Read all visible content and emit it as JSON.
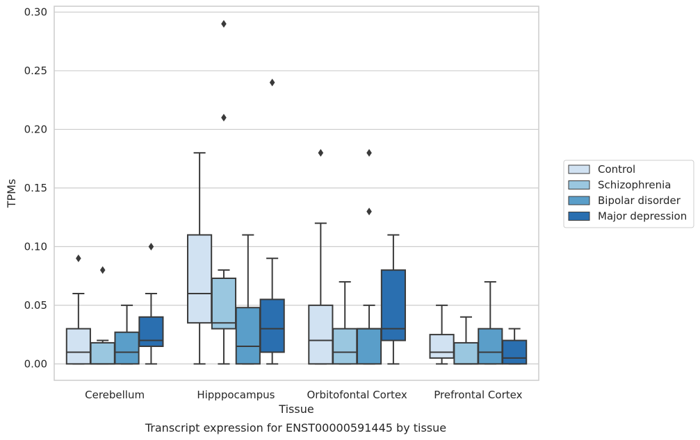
{
  "chart_data": {
    "type": "box",
    "title": "",
    "caption": "Transcript expression for ENST00000591445 by tissue",
    "xlabel": "Tissue",
    "ylabel": "TPMs",
    "ylim": [
      -0.014,
      0.305
    ],
    "yticks": [
      "0.00",
      "0.05",
      "0.10",
      "0.15",
      "0.20",
      "0.25",
      "0.30"
    ],
    "ytick_values": [
      0,
      0.05,
      0.1,
      0.15,
      0.2,
      0.25,
      0.3
    ],
    "grid": true,
    "legend_placement": "right",
    "categories": [
      "Cerebellum",
      "Hipppocampus",
      "Orbitofontal Cortex",
      "Prefrontal Cortex"
    ],
    "series": [
      {
        "name": "Control",
        "color": "#d1e2f2",
        "boxes": [
          {
            "whisker_low": 0,
            "q1": 0,
            "median": 0.01,
            "q3": 0.03,
            "whisker_high": 0.06,
            "outliers": [
              0.09
            ]
          },
          {
            "whisker_low": 0,
            "q1": 0.035,
            "median": 0.06,
            "q3": 0.11,
            "whisker_high": 0.18,
            "outliers": []
          },
          {
            "whisker_low": 0,
            "q1": 0,
            "median": 0.02,
            "q3": 0.05,
            "whisker_high": 0.12,
            "outliers": [
              0.18
            ]
          },
          {
            "whisker_low": 0,
            "q1": 0.005,
            "median": 0.01,
            "q3": 0.025,
            "whisker_high": 0.05,
            "outliers": []
          }
        ]
      },
      {
        "name": "Schizophrenia",
        "color": "#9ac7e0",
        "boxes": [
          {
            "whisker_low": 0,
            "q1": 0,
            "median": 0,
            "q3": 0.018,
            "whisker_high": 0.02,
            "outliers": [
              0.08
            ]
          },
          {
            "whisker_low": 0,
            "q1": 0.03,
            "median": 0.035,
            "q3": 0.073,
            "whisker_high": 0.08,
            "outliers": [
              0.21,
              0.29
            ]
          },
          {
            "whisker_low": 0,
            "q1": 0,
            "median": 0.01,
            "q3": 0.03,
            "whisker_high": 0.07,
            "outliers": []
          },
          {
            "whisker_low": 0,
            "q1": 0,
            "median": 0,
            "q3": 0.018,
            "whisker_high": 0.04,
            "outliers": []
          }
        ]
      },
      {
        "name": "Bipolar disorder",
        "color": "#5a9ec9",
        "boxes": [
          {
            "whisker_low": 0,
            "q1": 0,
            "median": 0.01,
            "q3": 0.027,
            "whisker_high": 0.05,
            "outliers": []
          },
          {
            "whisker_low": 0,
            "q1": 0,
            "median": 0.015,
            "q3": 0.048,
            "whisker_high": 0.11,
            "outliers": []
          },
          {
            "whisker_low": 0,
            "q1": 0,
            "median": 0.03,
            "q3": 0.03,
            "whisker_high": 0.05,
            "outliers": [
              0.13,
              0.18
            ]
          },
          {
            "whisker_low": 0,
            "q1": 0,
            "median": 0.01,
            "q3": 0.03,
            "whisker_high": 0.07,
            "outliers": []
          }
        ]
      },
      {
        "name": "Major depression",
        "color": "#2a6fb0",
        "boxes": [
          {
            "whisker_low": 0,
            "q1": 0.015,
            "median": 0.02,
            "q3": 0.04,
            "whisker_high": 0.06,
            "outliers": [
              0.1
            ]
          },
          {
            "whisker_low": 0,
            "q1": 0.01,
            "median": 0.03,
            "q3": 0.055,
            "whisker_high": 0.09,
            "outliers": [
              0.24
            ]
          },
          {
            "whisker_low": 0,
            "q1": 0.02,
            "median": 0.03,
            "q3": 0.08,
            "whisker_high": 0.11,
            "outliers": []
          },
          {
            "whisker_low": 0,
            "q1": 0,
            "median": 0.005,
            "q3": 0.02,
            "whisker_high": 0.03,
            "outliers": []
          }
        ]
      }
    ]
  }
}
